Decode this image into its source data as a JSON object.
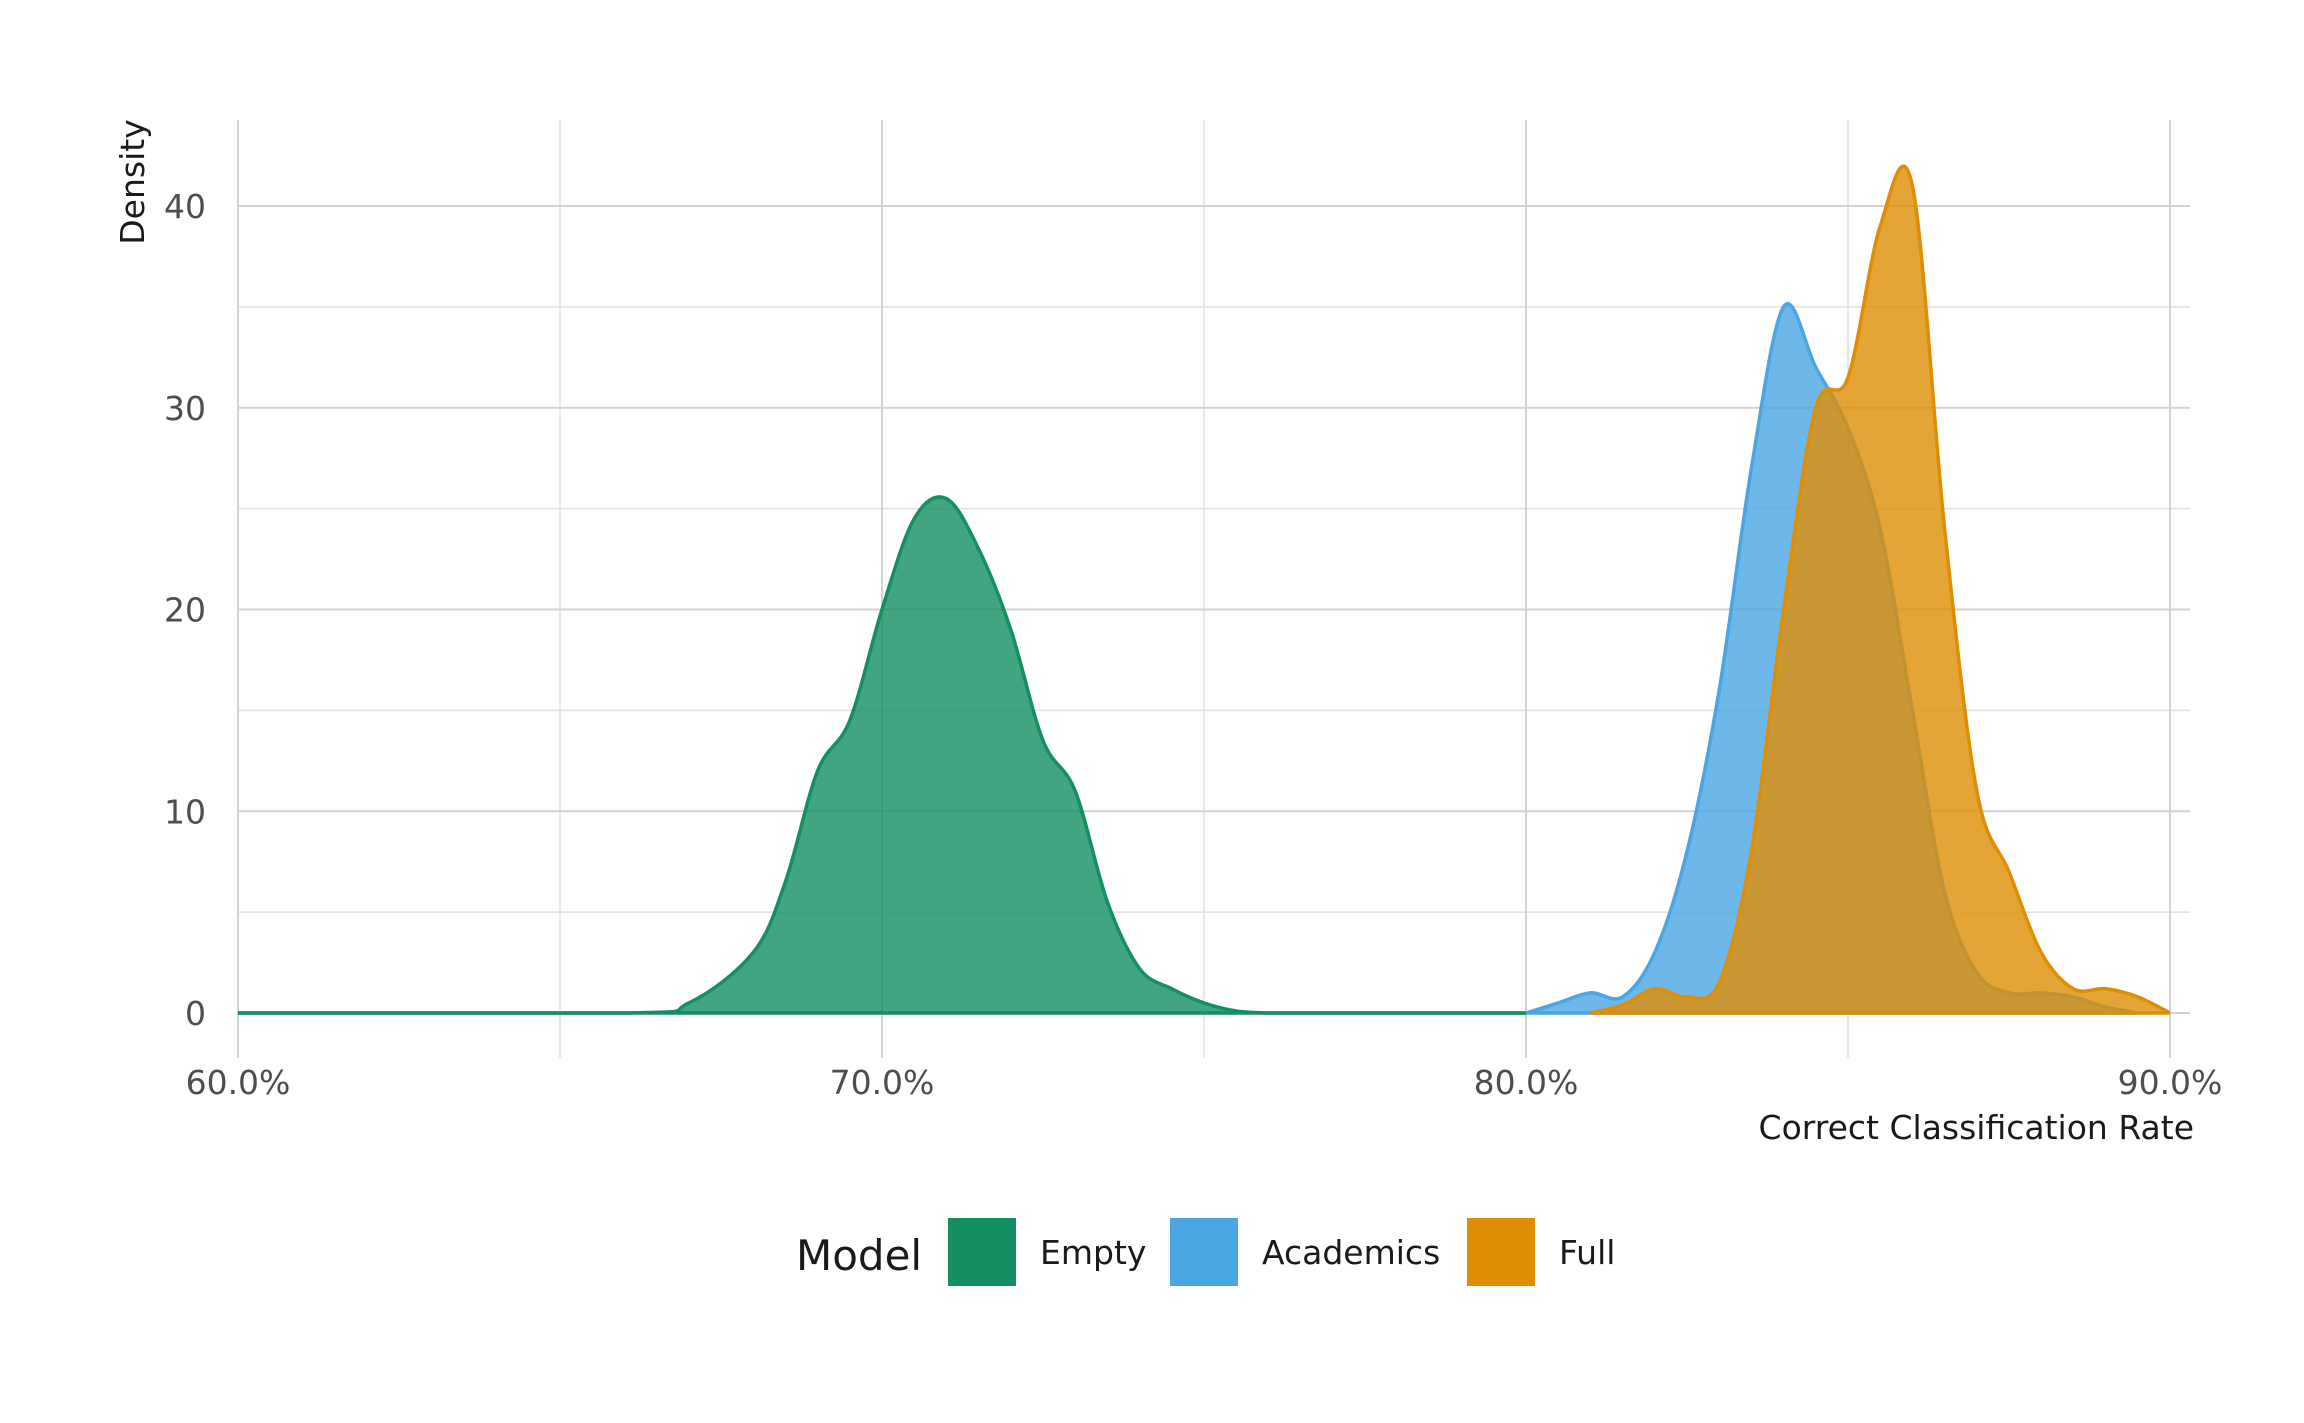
{
  "chart_data": {
    "type": "area",
    "xlabel": "Correct Classification Rate",
    "ylabel": "Density",
    "xlim": [
      0.6,
      0.9
    ],
    "ylim": [
      0,
      42
    ],
    "x_ticks": [
      0.6,
      0.7,
      0.8,
      0.9
    ],
    "x_tick_labels": [
      "60.0%",
      "70.0%",
      "80.0%",
      "90.0%"
    ],
    "y_ticks": [
      0,
      10,
      20,
      30,
      40
    ],
    "y_tick_labels": [
      "0",
      "10",
      "20",
      "30",
      "40"
    ],
    "grid": true,
    "legend": {
      "title": "Model",
      "position": "bottom",
      "entries": [
        "Empty",
        "Academics",
        "Full"
      ]
    },
    "series": [
      {
        "name": "Empty",
        "color": "#138f62",
        "x": [
          0.6,
          0.66,
          0.67,
          0.68,
          0.685,
          0.69,
          0.695,
          0.7,
          0.705,
          0.71,
          0.715,
          0.72,
          0.725,
          0.73,
          0.735,
          0.74,
          0.745,
          0.75,
          0.755,
          0.76,
          0.765,
          0.77,
          0.8
        ],
        "y": [
          0,
          0,
          0.5,
          3,
          6.5,
          12,
          14.5,
          20,
          24.5,
          25.5,
          23,
          19,
          13.5,
          11,
          5.5,
          2.2,
          1.2,
          0.5,
          0.1,
          0,
          0,
          0,
          0
        ]
      },
      {
        "name": "Academics",
        "color": "#4aa5e3",
        "x": [
          0.8,
          0.805,
          0.81,
          0.815,
          0.82,
          0.825,
          0.83,
          0.835,
          0.84,
          0.845,
          0.85,
          0.855,
          0.86,
          0.865,
          0.87,
          0.875,
          0.88,
          0.885,
          0.89,
          0.895
        ],
        "y": [
          0,
          0.5,
          1.0,
          0.8,
          3,
          8,
          16,
          27,
          35,
          32,
          29,
          24,
          15,
          6,
          2,
          1,
          1.0,
          0.8,
          0.3,
          0
        ]
      },
      {
        "name": "Full",
        "color": "#df8d04",
        "x": [
          0.81,
          0.815,
          0.82,
          0.825,
          0.83,
          0.835,
          0.84,
          0.845,
          0.85,
          0.855,
          0.86,
          0.865,
          0.87,
          0.875,
          0.88,
          0.885,
          0.89,
          0.895,
          0.9
        ],
        "y": [
          0,
          0.4,
          1.2,
          0.8,
          1.5,
          8,
          20,
          30,
          31.5,
          39,
          41,
          24,
          11,
          7,
          3,
          1.2,
          1.2,
          0.8,
          0
        ]
      }
    ]
  }
}
